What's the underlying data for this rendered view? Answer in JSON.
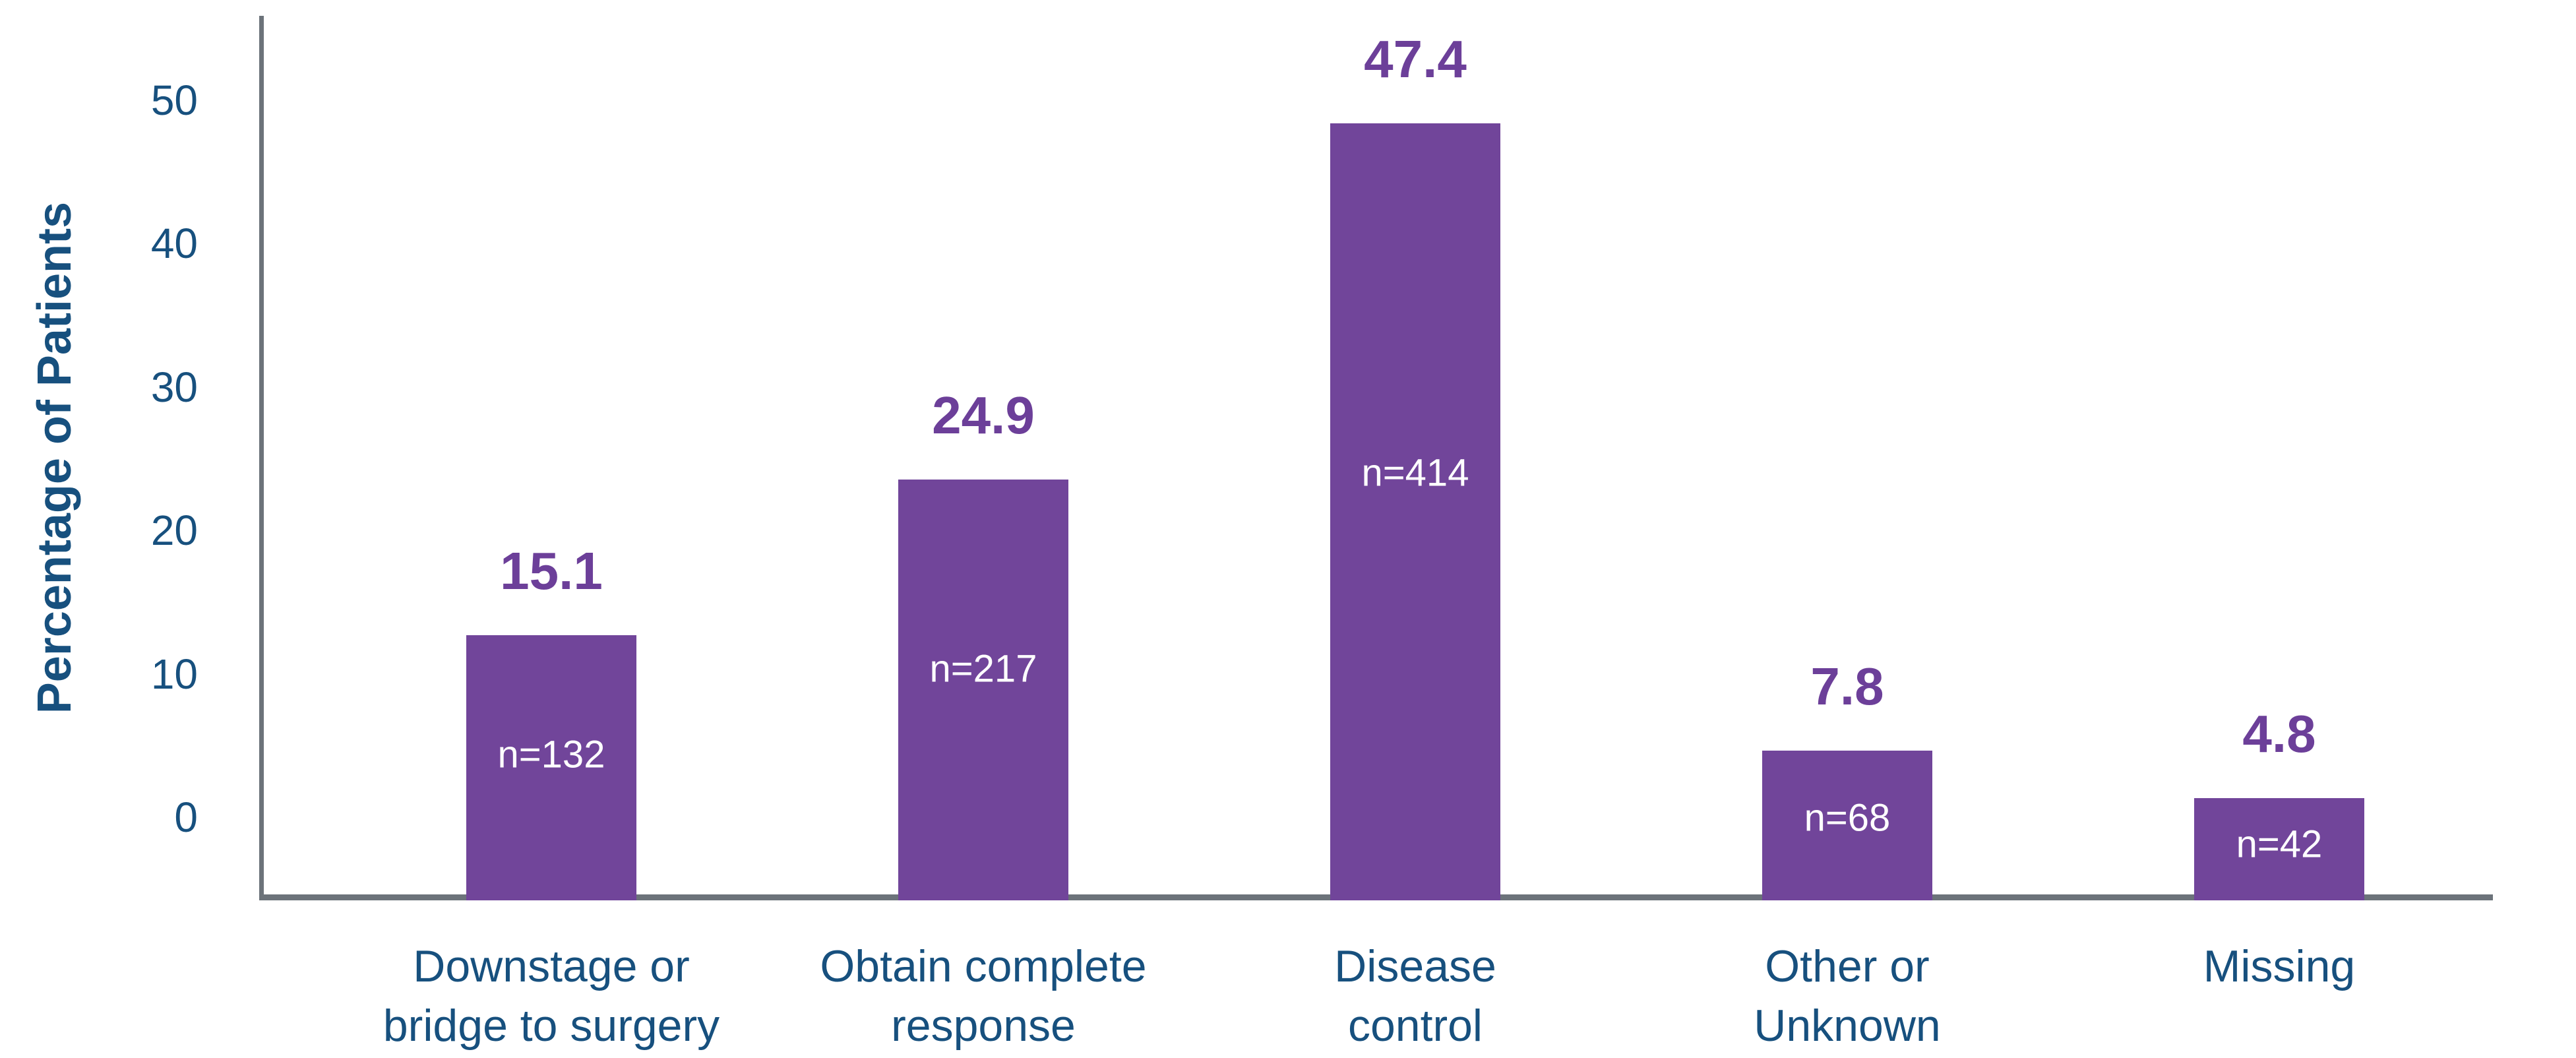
{
  "chart_data": {
    "type": "bar",
    "title": "",
    "xlabel": "",
    "ylabel": "Percentage of Patients",
    "ylim": [
      0,
      55
    ],
    "grid": false,
    "legend": false,
    "yticks": [
      {
        "label": "0",
        "value": 0
      },
      {
        "label": "10",
        "value": 10
      },
      {
        "label": "20",
        "value": 20
      },
      {
        "label": "30",
        "value": 30
      },
      {
        "label": "40",
        "value": 40
      },
      {
        "label": "50",
        "value": 50
      }
    ],
    "categories": [
      "Downstage or bridge to surgery",
      "Obtain complete response",
      "Disease control",
      "Other or Unknown",
      "Missing"
    ],
    "values": [
      15.1,
      24.9,
      47.4,
      7.8,
      4.8
    ],
    "counts": [
      132,
      217,
      414,
      68,
      42
    ],
    "bars": [
      {
        "category_lines": [
          "Downstage or",
          "bridge to surgery"
        ],
        "value": 15.1,
        "value_label": "15.1",
        "n": 132,
        "n_label": "n=132"
      },
      {
        "category_lines": [
          "Obtain complete",
          "response"
        ],
        "value": 24.9,
        "value_label": "24.9",
        "n": 217,
        "n_label": "n=217"
      },
      {
        "category_lines": [
          "Disease",
          "control"
        ],
        "value": 47.4,
        "value_label": "47.4",
        "n": 414,
        "n_label": "n=414"
      },
      {
        "category_lines": [
          "Other or",
          "Unknown"
        ],
        "value": 7.8,
        "value_label": "7.8",
        "n": 68,
        "n_label": "n=68"
      },
      {
        "category_lines": [
          "Missing"
        ],
        "value": 4.8,
        "value_label": "4.8",
        "n": 42,
        "n_label": "n=42"
      }
    ],
    "colors": {
      "bar": "#71459A",
      "value_label_text": "#6C3F99",
      "axis_text": "#17507E",
      "axis_line": "#6C737A",
      "n_label_text": "#FFFFFF",
      "background": "#FFFFFF"
    }
  }
}
